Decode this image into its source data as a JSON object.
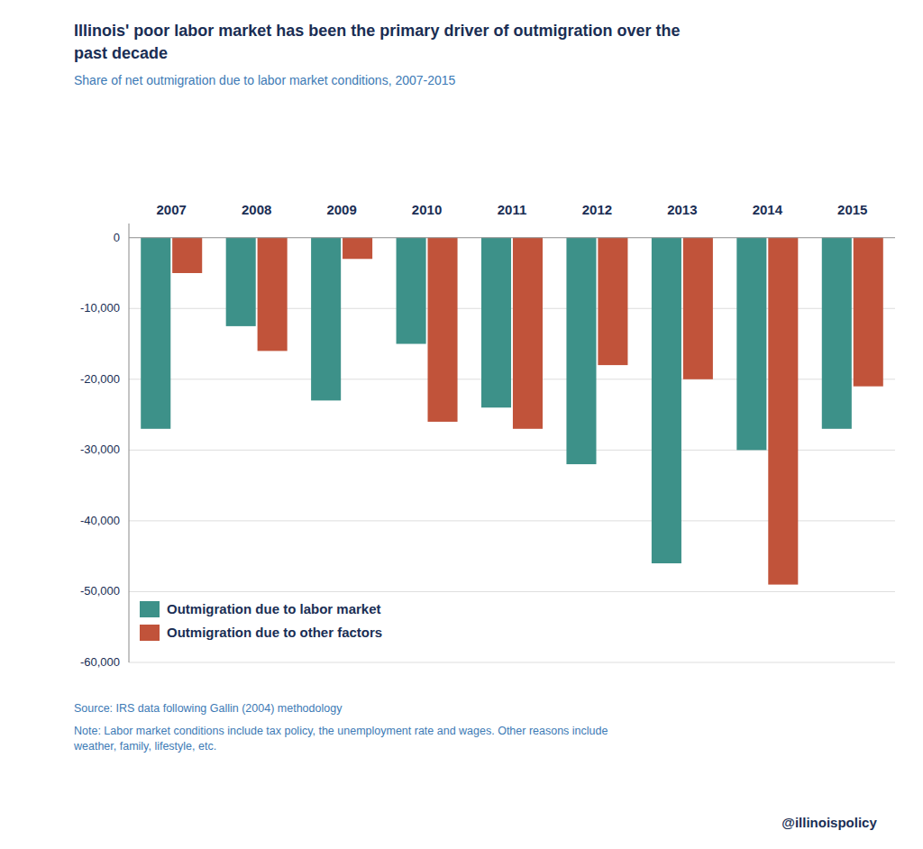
{
  "chart_data": {
    "type": "bar",
    "title": "Illinois' poor labor market has been the primary driver of outmigration over the\npast decade",
    "subtitle": "Share of net outmigration due to labor market conditions, 2007-2015",
    "categories": [
      "2007",
      "2008",
      "2009",
      "2010",
      "2011",
      "2012",
      "2013",
      "2014",
      "2015"
    ],
    "series": [
      {
        "name": "Outmigration due to labor market",
        "color": "#3d9189",
        "values": [
          -27000,
          -12500,
          -23000,
          -15000,
          -24000,
          -32000,
          -46000,
          -30000,
          -27000
        ]
      },
      {
        "name": "Outmigration due to other factors",
        "color": "#c1533a",
        "values": [
          -5000,
          -16000,
          -3000,
          -26000,
          -27000,
          -18000,
          -20000,
          -49000,
          -21000
        ]
      }
    ],
    "ylim": [
      -60000,
      2000
    ],
    "yticks": [
      0,
      {
        "value": -10000,
        "label": "-10,000"
      },
      {
        "value": -20000,
        "label": "-20,000"
      },
      {
        "value": -30000,
        "label": "-30,000"
      },
      {
        "value": -40000,
        "label": "-40,000"
      },
      {
        "value": -50000,
        "label": "-50,000"
      },
      {
        "value": -60000,
        "label": "-60,000"
      }
    ],
    "grid": true,
    "legend": "lower left",
    "annotations": [
      "Source: IRS data following Gallin (2004) methodology",
      "Note: Labor market conditions include tax policy, the unemployment rate and wages. Other reasons include\nweather, family, lifestyle, etc.",
      "@illinoispolicy"
    ]
  }
}
